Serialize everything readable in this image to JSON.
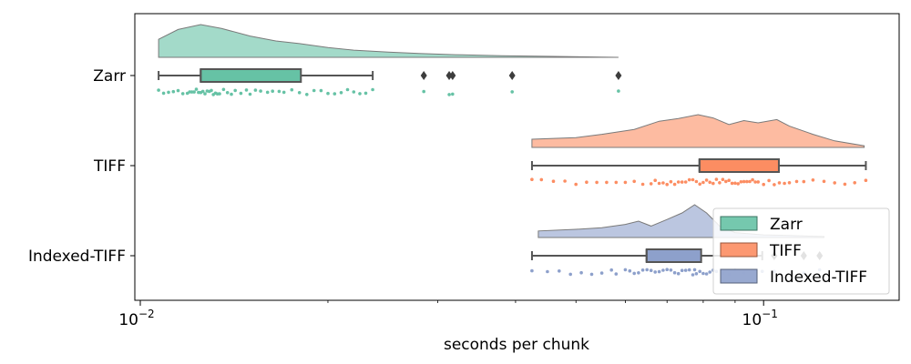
{
  "chart_data": {
    "type": "raincloud",
    "xlabel": "seconds per chunk",
    "xscale": "log",
    "xlim": [
      0.0098,
      0.165
    ],
    "xticks": [
      {
        "value": 0.01,
        "base": "10",
        "exp": "−2"
      },
      {
        "value": 0.1,
        "base": "10",
        "exp": "−1"
      }
    ],
    "categories": [
      "Zarr",
      "TIFF",
      "Indexed-TIFF"
    ],
    "legend": {
      "position": "lower right",
      "entries": [
        "Zarr",
        "TIFF",
        "Indexed-TIFF"
      ]
    },
    "series": [
      {
        "name": "Zarr",
        "color": "#66c2a5",
        "box": {
          "whislo": 0.0107,
          "q1": 0.0125,
          "median": 0.0125,
          "q3": 0.0181,
          "whishi": 0.0236
        },
        "outliers": [
          0.0285,
          0.0313,
          0.0317,
          0.0395,
          0.0585
        ],
        "density": [
          [
            0.0107,
            0.55
          ],
          [
            0.0115,
            0.85
          ],
          [
            0.0125,
            1.0
          ],
          [
            0.0135,
            0.88
          ],
          [
            0.015,
            0.65
          ],
          [
            0.0165,
            0.5
          ],
          [
            0.018,
            0.42
          ],
          [
            0.02,
            0.3
          ],
          [
            0.022,
            0.22
          ],
          [
            0.025,
            0.16
          ],
          [
            0.028,
            0.12
          ],
          [
            0.032,
            0.08
          ],
          [
            0.038,
            0.05
          ],
          [
            0.045,
            0.03
          ],
          [
            0.0585,
            0.0
          ]
        ],
        "points": [
          0.0107,
          0.0109,
          0.0111,
          0.0113,
          0.0115,
          0.0117,
          0.0119,
          0.012,
          0.0121,
          0.0122,
          0.0123,
          0.0124,
          0.0125,
          0.0126,
          0.0127,
          0.0128,
          0.0129,
          0.013,
          0.0131,
          0.0132,
          0.0133,
          0.0134,
          0.0136,
          0.0138,
          0.014,
          0.0142,
          0.0145,
          0.0148,
          0.015,
          0.0153,
          0.0156,
          0.016,
          0.0163,
          0.0167,
          0.017,
          0.0175,
          0.018,
          0.0185,
          0.019,
          0.0195,
          0.02,
          0.0205,
          0.021,
          0.0215,
          0.022,
          0.0225,
          0.023,
          0.0236,
          0.0285,
          0.0313,
          0.0317,
          0.0395,
          0.0585
        ]
      },
      {
        "name": "TIFF",
        "color": "#fc8d62",
        "box": {
          "whislo": 0.0425,
          "q1": 0.0789,
          "median": 0.0789,
          "q3": 0.1058,
          "whishi": 0.1459
        },
        "outliers": [],
        "density": [
          [
            0.0425,
            0.25
          ],
          [
            0.05,
            0.3
          ],
          [
            0.055,
            0.4
          ],
          [
            0.062,
            0.55
          ],
          [
            0.068,
            0.8
          ],
          [
            0.073,
            0.88
          ],
          [
            0.0785,
            1.0
          ],
          [
            0.083,
            0.9
          ],
          [
            0.088,
            0.7
          ],
          [
            0.093,
            0.82
          ],
          [
            0.098,
            0.75
          ],
          [
            0.105,
            0.85
          ],
          [
            0.11,
            0.65
          ],
          [
            0.12,
            0.4
          ],
          [
            0.13,
            0.2
          ],
          [
            0.145,
            0.05
          ]
        ],
        "points": [
          0.0425,
          0.044,
          0.046,
          0.048,
          0.05,
          0.052,
          0.054,
          0.056,
          0.058,
          0.06,
          0.062,
          0.064,
          0.066,
          0.067,
          0.068,
          0.069,
          0.07,
          0.071,
          0.072,
          0.073,
          0.074,
          0.075,
          0.076,
          0.077,
          0.078,
          0.079,
          0.08,
          0.081,
          0.082,
          0.083,
          0.084,
          0.085,
          0.086,
          0.087,
          0.088,
          0.089,
          0.09,
          0.091,
          0.092,
          0.093,
          0.094,
          0.095,
          0.096,
          0.097,
          0.098,
          0.1,
          0.102,
          0.104,
          0.106,
          0.108,
          0.11,
          0.113,
          0.116,
          0.12,
          0.125,
          0.13,
          0.135,
          0.14,
          0.1459
        ]
      },
      {
        "name": "Indexed-TIFF",
        "color": "#8da0cb",
        "box": {
          "whislo": 0.0425,
          "q1": 0.0649,
          "median": 0.0649,
          "q3": 0.0794,
          "whishi": 0.0995
        },
        "outliers": [
          0.104,
          0.116,
          0.123
        ],
        "density": [
          [
            0.0435,
            0.2
          ],
          [
            0.05,
            0.25
          ],
          [
            0.055,
            0.3
          ],
          [
            0.06,
            0.4
          ],
          [
            0.063,
            0.5
          ],
          [
            0.066,
            0.35
          ],
          [
            0.07,
            0.55
          ],
          [
            0.074,
            0.75
          ],
          [
            0.0775,
            1.0
          ],
          [
            0.081,
            0.75
          ],
          [
            0.085,
            0.35
          ],
          [
            0.09,
            0.15
          ],
          [
            0.1,
            0.08
          ],
          [
            0.11,
            0.06
          ],
          [
            0.125,
            0.03
          ]
        ],
        "points": [
          0.0425,
          0.045,
          0.047,
          0.049,
          0.051,
          0.053,
          0.055,
          0.057,
          0.058,
          0.06,
          0.061,
          0.062,
          0.063,
          0.064,
          0.065,
          0.066,
          0.067,
          0.068,
          0.069,
          0.07,
          0.071,
          0.072,
          0.073,
          0.074,
          0.075,
          0.076,
          0.077,
          0.0775,
          0.078,
          0.079,
          0.08,
          0.081,
          0.082,
          0.083,
          0.084,
          0.086,
          0.088,
          0.09,
          0.093,
          0.0995,
          0.104,
          0.116,
          0.123
        ]
      }
    ]
  }
}
